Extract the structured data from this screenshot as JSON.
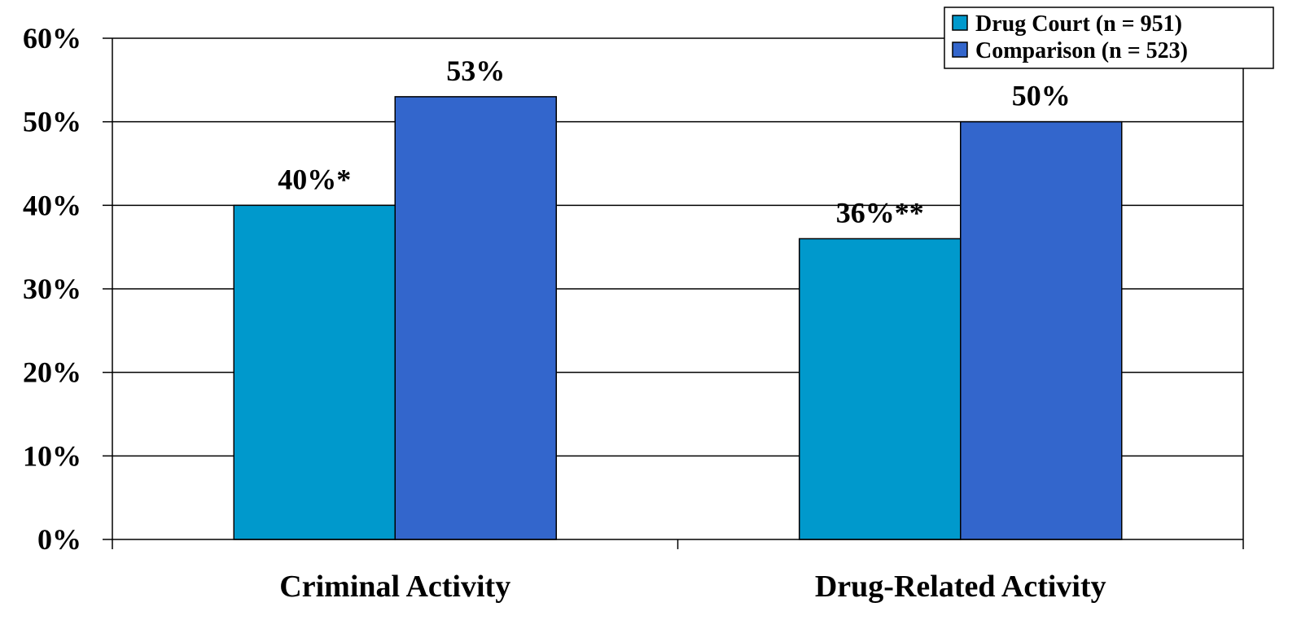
{
  "chart_data": {
    "type": "bar",
    "categories": [
      "Criminal Activity",
      "Drug-Related Activity"
    ],
    "series": [
      {
        "name": "Drug Court (n = 951)",
        "values": [
          40,
          36
        ],
        "labels": [
          "40%*",
          "36%**"
        ],
        "color": "#0099CC"
      },
      {
        "name": "Comparison (n = 523)",
        "values": [
          53,
          50
        ],
        "labels": [
          "53%",
          "50%"
        ],
        "color": "#3366CC"
      }
    ],
    "ylim": [
      0,
      60
    ],
    "yticks": [
      0,
      10,
      20,
      30,
      40,
      50,
      60
    ],
    "ytick_labels": [
      "0%",
      "10%",
      "20%",
      "30%",
      "40%",
      "50%",
      "60%"
    ],
    "grid": true,
    "legend_position": "top-right",
    "xlabel": "",
    "ylabel": "",
    "title": ""
  }
}
